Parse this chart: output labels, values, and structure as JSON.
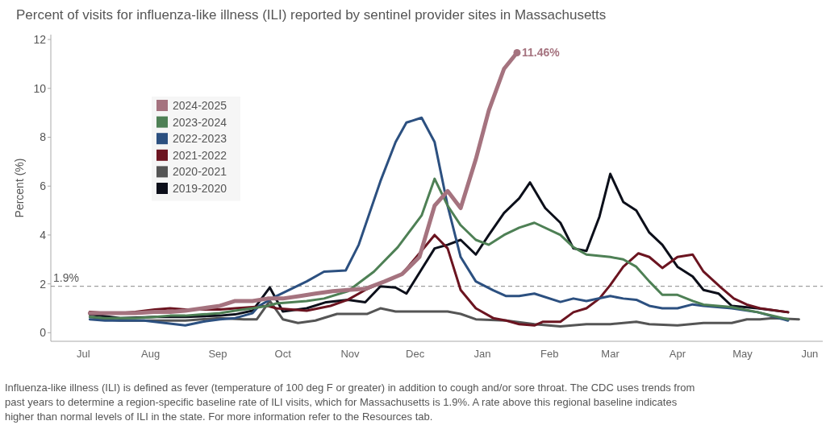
{
  "chart_data": {
    "type": "line",
    "title": "Percent of visits for influenza-like illness (ILI) reported by sentinel provider sites in Massachusetts",
    "ylabel": "Percent (%)",
    "xlim": [
      "2024-06-16",
      "2025-06-07"
    ],
    "xticks": [
      {
        "value": "2024-07-01",
        "label": "Jul"
      },
      {
        "value": "2024-08-01",
        "label": "Aug"
      },
      {
        "value": "2024-09-01",
        "label": "Sep"
      },
      {
        "value": "2024-10-01",
        "label": "Oct"
      },
      {
        "value": "2024-11-01",
        "label": "Nov"
      },
      {
        "value": "2024-12-01",
        "label": "Dec"
      },
      {
        "value": "2025-01-01",
        "label": "Jan"
      },
      {
        "value": "2025-02-01",
        "label": "Feb"
      },
      {
        "value": "2025-03-01",
        "label": "Mar"
      },
      {
        "value": "2025-04-01",
        "label": "Apr"
      },
      {
        "value": "2025-05-01",
        "label": "May"
      },
      {
        "value": "2025-06-01",
        "label": "Jun"
      }
    ],
    "ylim": [
      -0.35,
      12.2
    ],
    "yticks": [
      0,
      2,
      4,
      6,
      8,
      10,
      12
    ],
    "grid": false,
    "legend": "top left",
    "marker": "none",
    "line_style": "solid",
    "ref_lines": [
      {
        "axis": "y",
        "value": 1.9,
        "label": "1.9%",
        "color": "#888888",
        "line_style": "dashed"
      }
    ],
    "annotations": [
      {
        "text": "11.46%",
        "x": "2025-01-17",
        "y": 11.46
      },
      "Influenza-like illness (ILI) is defined as fever (temperature of 100 deg F or greater) in addition to cough and/or sore throat. The CDC uses trends from past years to determine a region-specific baseline rate of ILI visits, which for Massachusetts is 1.9%. A rate above this regional baseline indicates higher than normal levels of ILI in the state. For more information refer to the Resources tab."
    ],
    "series": [
      {
        "name": "2024-2025",
        "color": "#a5737f",
        "x": [
          "2024-07-04",
          "2024-07-11",
          "2024-07-18",
          "2024-07-25",
          "2024-08-03",
          "2024-08-10",
          "2024-08-17",
          "2024-08-25",
          "2024-09-02",
          "2024-09-09",
          "2024-09-17",
          "2024-09-24",
          "2024-10-01",
          "2024-10-09",
          "2024-10-16",
          "2024-10-24",
          "2024-10-31",
          "2024-11-08",
          "2024-11-17",
          "2024-11-25",
          "2024-12-03",
          "2024-12-10",
          "2024-12-16",
          "2024-12-22",
          "2024-12-29",
          "2025-01-04",
          "2025-01-11",
          "2025-01-17"
        ],
        "values": [
          0.8,
          0.8,
          0.8,
          0.8,
          0.85,
          0.85,
          0.9,
          1.0,
          1.1,
          1.3,
          1.3,
          1.4,
          1.4,
          1.5,
          1.6,
          1.7,
          1.75,
          1.8,
          2.1,
          2.4,
          3.1,
          5.2,
          5.8,
          5.1,
          7.1,
          9.1,
          10.8,
          11.46
        ]
      },
      {
        "name": "2023-2024",
        "color": "#4e8055",
        "x": [
          "2024-07-04",
          "2024-07-11",
          "2024-07-18",
          "2024-07-25",
          "2024-08-03",
          "2024-08-10",
          "2024-08-17",
          "2024-08-25",
          "2024-09-02",
          "2024-09-09",
          "2024-09-17",
          "2024-09-24",
          "2024-09-28",
          "2024-10-12",
          "2024-10-20",
          "2024-10-31",
          "2024-11-12",
          "2024-11-23",
          "2024-12-04",
          "2024-12-10",
          "2024-12-16",
          "2024-12-22",
          "2024-12-29",
          "2025-01-04",
          "2025-01-11",
          "2025-01-18",
          "2025-01-25",
          "2025-02-06",
          "2025-02-12",
          "2025-02-18",
          "2025-03-01",
          "2025-03-07",
          "2025-03-13",
          "2025-03-19",
          "2025-03-25",
          "2025-04-01",
          "2025-04-08",
          "2025-04-13",
          "2025-04-26",
          "2025-05-08",
          "2025-05-22"
        ],
        "values": [
          0.65,
          0.6,
          0.6,
          0.6,
          0.65,
          0.7,
          0.7,
          0.75,
          0.8,
          0.9,
          1.0,
          1.1,
          1.2,
          1.3,
          1.4,
          1.7,
          2.5,
          3.5,
          4.8,
          6.3,
          5.2,
          4.4,
          3.8,
          3.6,
          4.0,
          4.3,
          4.5,
          4.0,
          3.5,
          3.2,
          3.1,
          3.0,
          2.7,
          2.1,
          1.55,
          1.55,
          1.3,
          1.15,
          1.05,
          0.84,
          0.55
        ]
      },
      {
        "name": "2022-2023",
        "color": "#2c5080",
        "x": [
          "2024-07-04",
          "2024-07-11",
          "2024-07-29",
          "2024-08-17",
          "2024-08-25",
          "2024-09-02",
          "2024-09-09",
          "2024-09-17",
          "2024-09-20",
          "2024-09-28",
          "2024-10-12",
          "2024-10-20",
          "2024-10-30",
          "2024-11-05",
          "2024-11-15",
          "2024-11-22",
          "2024-11-27",
          "2024-12-04",
          "2024-12-10",
          "2024-12-16",
          "2024-12-22",
          "2024-12-29",
          "2025-01-06",
          "2025-01-12",
          "2025-01-18",
          "2025-01-25",
          "2025-02-06",
          "2025-02-12",
          "2025-02-18",
          "2025-03-01",
          "2025-03-07",
          "2025-03-13",
          "2025-03-19",
          "2025-03-25",
          "2025-04-01",
          "2025-04-08",
          "2025-04-13",
          "2025-04-26",
          "2025-05-08",
          "2025-05-22"
        ],
        "values": [
          0.55,
          0.5,
          0.5,
          0.3,
          0.45,
          0.55,
          0.6,
          0.8,
          1.1,
          1.5,
          2.1,
          2.5,
          2.55,
          3.6,
          6.2,
          7.8,
          8.6,
          8.8,
          7.8,
          5.2,
          3.1,
          2.1,
          1.74,
          1.5,
          1.5,
          1.6,
          1.26,
          1.4,
          1.3,
          1.5,
          1.4,
          1.35,
          1.1,
          1.0,
          1.0,
          1.16,
          1.1,
          1.0,
          0.84,
          0.5
        ]
      },
      {
        "name": "2021-2022",
        "color": "#6b1420",
        "x": [
          "2024-07-04",
          "2024-07-11",
          "2024-07-18",
          "2024-07-25",
          "2024-08-03",
          "2024-08-10",
          "2024-08-17",
          "2024-08-25",
          "2024-09-02",
          "2024-09-09",
          "2024-09-17",
          "2024-09-24",
          "2024-09-28",
          "2024-10-12",
          "2024-10-23",
          "2024-10-31",
          "2024-11-08",
          "2024-11-17",
          "2024-11-25",
          "2024-12-03",
          "2024-12-10",
          "2024-12-16",
          "2024-12-22",
          "2024-12-29",
          "2025-01-06",
          "2025-01-12",
          "2025-01-18",
          "2025-01-25",
          "2025-01-29",
          "2025-02-06",
          "2025-02-12",
          "2025-02-18",
          "2025-02-24",
          "2025-03-01",
          "2025-03-07",
          "2025-03-14",
          "2025-03-19",
          "2025-03-25",
          "2025-04-01",
          "2025-04-08",
          "2025-04-13",
          "2025-04-21",
          "2025-04-27",
          "2025-05-03",
          "2025-05-09",
          "2025-05-22"
        ],
        "values": [
          0.85,
          0.8,
          0.8,
          0.85,
          0.95,
          1.0,
          0.95,
          0.95,
          0.95,
          1.0,
          1.05,
          1.1,
          1.0,
          0.9,
          1.1,
          1.35,
          1.75,
          2.1,
          2.4,
          3.25,
          4.0,
          3.45,
          1.75,
          1.0,
          0.6,
          0.5,
          0.35,
          0.3,
          0.45,
          0.45,
          0.84,
          1.0,
          1.4,
          1.95,
          2.7,
          3.25,
          3.1,
          2.65,
          3.1,
          3.2,
          2.5,
          1.85,
          1.4,
          1.15,
          1.0,
          0.84
        ]
      },
      {
        "name": "2020-2021",
        "color": "#555555",
        "x": [
          "2024-07-04",
          "2024-07-11",
          "2024-07-18",
          "2024-08-03",
          "2024-08-17",
          "2024-09-02",
          "2024-09-13",
          "2024-09-19",
          "2024-09-25",
          "2024-10-01",
          "2024-10-08",
          "2024-10-16",
          "2024-10-26",
          "2024-11-09",
          "2024-11-15",
          "2024-11-22",
          "2024-12-04",
          "2024-12-16",
          "2024-12-22",
          "2024-12-29",
          "2025-01-12",
          "2025-01-25",
          "2025-02-06",
          "2025-02-18",
          "2025-03-01",
          "2025-03-13",
          "2025-03-19",
          "2025-04-01",
          "2025-04-13",
          "2025-04-26",
          "2025-05-03",
          "2025-05-09",
          "2025-05-15",
          "2025-05-27"
        ],
        "values": [
          0.65,
          0.55,
          0.5,
          0.5,
          0.5,
          0.6,
          0.55,
          0.55,
          1.3,
          0.55,
          0.4,
          0.5,
          0.77,
          0.77,
          1.0,
          0.87,
          0.87,
          0.87,
          0.77,
          0.55,
          0.5,
          0.35,
          0.26,
          0.35,
          0.35,
          0.45,
          0.35,
          0.3,
          0.4,
          0.4,
          0.55,
          0.55,
          0.6,
          0.55
        ]
      },
      {
        "name": "2019-2020",
        "color": "#0c0f1a",
        "x": [
          "2024-07-04",
          "2024-07-18",
          "2024-08-03",
          "2024-08-17",
          "2024-09-02",
          "2024-09-09",
          "2024-09-17",
          "2024-09-25",
          "2024-10-01",
          "2024-10-12",
          "2024-10-21",
          "2024-10-31",
          "2024-11-08",
          "2024-11-15",
          "2024-11-22",
          "2024-11-27",
          "2024-12-04",
          "2024-12-10",
          "2024-12-16",
          "2024-12-22",
          "2024-12-29",
          "2025-01-04",
          "2025-01-11",
          "2025-01-18",
          "2025-01-23",
          "2025-01-30",
          "2025-02-06",
          "2025-02-12",
          "2025-02-18",
          "2025-02-24",
          "2025-03-01",
          "2025-03-07",
          "2025-03-13",
          "2025-03-19",
          "2025-03-25",
          "2025-04-01",
          "2025-04-08",
          "2025-04-13",
          "2025-04-20",
          "2025-04-26",
          "2025-05-08",
          "2025-05-22"
        ],
        "values": [
          0.75,
          0.6,
          0.65,
          0.65,
          0.7,
          0.75,
          0.9,
          1.85,
          0.87,
          1.0,
          1.25,
          1.35,
          1.25,
          1.9,
          1.85,
          1.6,
          2.6,
          3.45,
          3.6,
          3.8,
          3.2,
          4.0,
          4.9,
          5.5,
          6.15,
          5.1,
          4.5,
          3.45,
          3.35,
          4.75,
          6.5,
          5.35,
          5.0,
          4.1,
          3.6,
          2.7,
          2.3,
          1.75,
          1.6,
          1.1,
          1.0,
          0.84
        ]
      }
    ]
  }
}
